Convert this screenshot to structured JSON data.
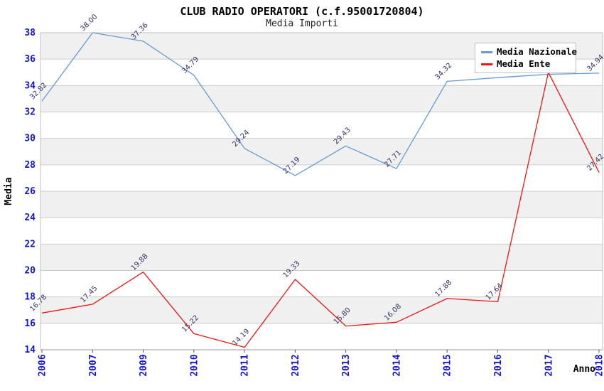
{
  "header": {
    "title": "CLUB RADIO OPERATORI (c.f.95001720804)",
    "subtitle": "Media Importi"
  },
  "legend": {
    "items": [
      {
        "label": "Media Nazionale",
        "color": "#649bd4"
      },
      {
        "label": "Media Ente",
        "color": "#ee1515"
      }
    ]
  },
  "chart_data": {
    "type": "line",
    "title": "CLUB RADIO OPERATORI (c.f.95001720804)",
    "subtitle": "Media Importi",
    "categories": [
      "2006",
      "2007",
      "2009",
      "2010",
      "2011",
      "2012",
      "2013",
      "2014",
      "2015",
      "2016",
      "2017",
      "2018"
    ],
    "series": [
      {
        "name": "Media Nazionale",
        "color": "#649bd4",
        "values": [
          32.82,
          38.0,
          37.36,
          34.79,
          29.24,
          27.19,
          29.43,
          27.71,
          34.32,
          34.6,
          34.85,
          34.94
        ],
        "point_labels": [
          "32.82",
          "38.00",
          "37.36",
          "34.79",
          "29.24",
          "27.19",
          "29.43",
          "27.71",
          "34.32",
          "",
          "",
          "34.94"
        ]
      },
      {
        "name": "Media Ente",
        "color": "#ee1515",
        "values": [
          16.78,
          17.45,
          19.88,
          15.22,
          14.19,
          19.33,
          15.8,
          16.08,
          17.88,
          17.64,
          35.0,
          27.42
        ],
        "point_labels": [
          "16.78",
          "17.45",
          "19.88",
          "15.22",
          "14.19",
          "19.33",
          "15.80",
          "16.08",
          "17.88",
          "17.64",
          "",
          "27.42"
        ]
      }
    ],
    "xlabel": "Anno",
    "ylabel": "Media",
    "ylim": [
      14,
      38
    ],
    "ytick_step": 2,
    "grid": true,
    "legend_position": "top-right",
    "colors": {
      "band": "#f0f0f0",
      "grid": "#cccccc",
      "plot_border": "#c0c0c0",
      "bottom_axis": "#999999",
      "tick_mark": "#555555",
      "tick_label": "#1515cc",
      "axis_title": "#000000",
      "data_label": "#333366",
      "background": "#ffffff"
    }
  }
}
